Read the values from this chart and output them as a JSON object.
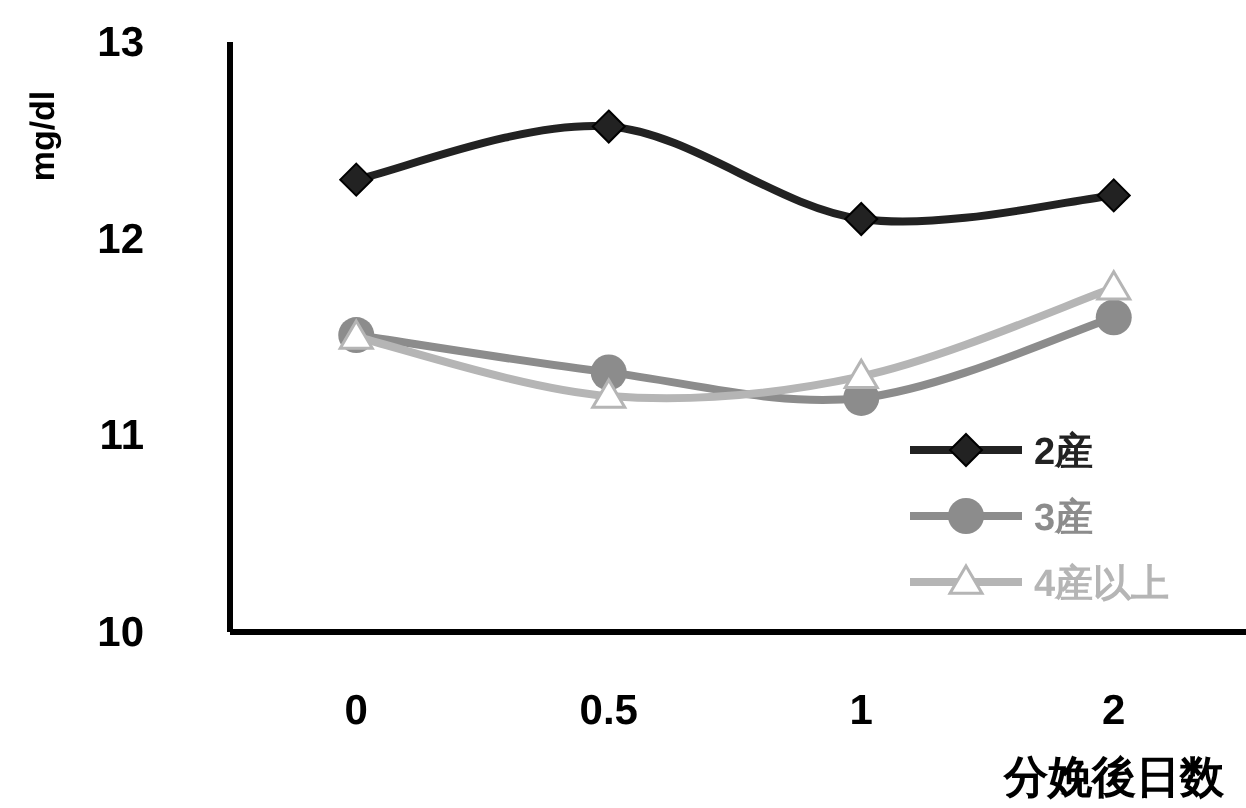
{
  "chart_data": {
    "type": "line",
    "ylabel": "mg/dl",
    "xlabel": "分娩後日数",
    "categories": [
      "0",
      "0.5",
      "1",
      "2"
    ],
    "series": [
      {
        "name": "2産",
        "color": "#222222",
        "marker": "diamond",
        "values": [
          12.3,
          12.57,
          12.1,
          12.22
        ]
      },
      {
        "name": "3産",
        "color": "#8c8c8c",
        "marker": "circle",
        "values": [
          11.51,
          11.32,
          11.19,
          11.6
        ]
      },
      {
        "name": "4産以上",
        "color": "#b5b5b5",
        "marker": "triangle",
        "values": [
          11.5,
          11.2,
          11.3,
          11.75
        ]
      }
    ],
    "ylim": [
      10,
      13
    ],
    "yticks": [
      10,
      11,
      12,
      13
    ],
    "grid": false,
    "legend": "bottom right",
    "line_style": "solid"
  }
}
